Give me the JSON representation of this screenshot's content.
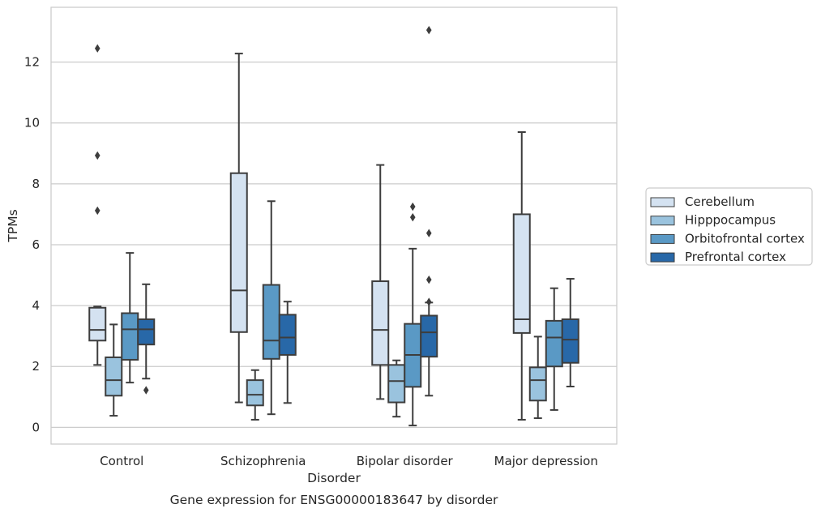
{
  "chart_data": {
    "type": "box",
    "caption": "Gene expression for ENSG00000183647 by disorder",
    "xlabel": "Disorder",
    "ylabel": "TPMs",
    "ylim": [
      -0.55,
      13.8
    ],
    "yticks": [
      0,
      2,
      4,
      6,
      8,
      10,
      12
    ],
    "grid": "horizontal",
    "legend_position": "right",
    "categories": [
      "Control",
      "Schizophrenia",
      "Bipolar disorder",
      "Major depression"
    ],
    "series": [
      {
        "name": "Cerebellum",
        "color": "#d4e2f1",
        "boxes": [
          {
            "whisker_low": 2.05,
            "q1": 2.85,
            "median": 3.2,
            "q3": 3.93,
            "whisker_high": 3.97,
            "outliers": [
              7.12,
              8.93,
              12.45
            ]
          },
          {
            "whisker_low": 0.82,
            "q1": 3.13,
            "median": 4.5,
            "q3": 8.35,
            "whisker_high": 12.28,
            "outliers": []
          },
          {
            "whisker_low": 0.93,
            "q1": 2.05,
            "median": 3.2,
            "q3": 4.8,
            "whisker_high": 8.62,
            "outliers": []
          },
          {
            "whisker_low": 0.25,
            "q1": 3.1,
            "median": 3.55,
            "q3": 7.0,
            "whisker_high": 9.7,
            "outliers": []
          }
        ]
      },
      {
        "name": "Hipppocampus",
        "color": "#9ac3de",
        "boxes": [
          {
            "whisker_low": 0.38,
            "q1": 1.04,
            "median": 1.55,
            "q3": 2.3,
            "whisker_high": 3.38,
            "outliers": []
          },
          {
            "whisker_low": 0.25,
            "q1": 0.72,
            "median": 1.07,
            "q3": 1.55,
            "whisker_high": 1.88,
            "outliers": []
          },
          {
            "whisker_low": 0.35,
            "q1": 0.82,
            "median": 1.52,
            "q3": 2.05,
            "whisker_high": 2.2,
            "outliers": []
          },
          {
            "whisker_low": 0.3,
            "q1": 0.88,
            "median": 1.55,
            "q3": 1.97,
            "whisker_high": 2.98,
            "outliers": []
          }
        ]
      },
      {
        "name": "Orbitofrontal cortex",
        "color": "#5a99c5",
        "boxes": [
          {
            "whisker_low": 1.47,
            "q1": 2.22,
            "median": 3.22,
            "q3": 3.75,
            "whisker_high": 5.73,
            "outliers": []
          },
          {
            "whisker_low": 0.43,
            "q1": 2.25,
            "median": 2.85,
            "q3": 4.68,
            "whisker_high": 7.43,
            "outliers": []
          },
          {
            "whisker_low": 0.06,
            "q1": 1.33,
            "median": 2.38,
            "q3": 3.4,
            "whisker_high": 5.87,
            "outliers": [
              6.9,
              7.25
            ]
          },
          {
            "whisker_low": 0.57,
            "q1": 2.0,
            "median": 2.95,
            "q3": 3.5,
            "whisker_high": 4.57,
            "outliers": []
          }
        ]
      },
      {
        "name": "Prefrontal cortex",
        "color": "#2868a8",
        "boxes": [
          {
            "whisker_low": 1.6,
            "q1": 2.72,
            "median": 3.22,
            "q3": 3.55,
            "whisker_high": 4.7,
            "outliers": [
              1.22
            ]
          },
          {
            "whisker_low": 0.8,
            "q1": 2.38,
            "median": 2.95,
            "q3": 3.7,
            "whisker_high": 4.13,
            "outliers": []
          },
          {
            "whisker_low": 1.04,
            "q1": 2.32,
            "median": 3.12,
            "q3": 3.67,
            "whisker_high": 4.1,
            "outliers": [
              4.12,
              4.85,
              6.38,
              13.05
            ]
          },
          {
            "whisker_low": 1.34,
            "q1": 2.12,
            "median": 2.88,
            "q3": 3.55,
            "whisker_high": 4.88,
            "outliers": []
          }
        ]
      }
    ]
  }
}
